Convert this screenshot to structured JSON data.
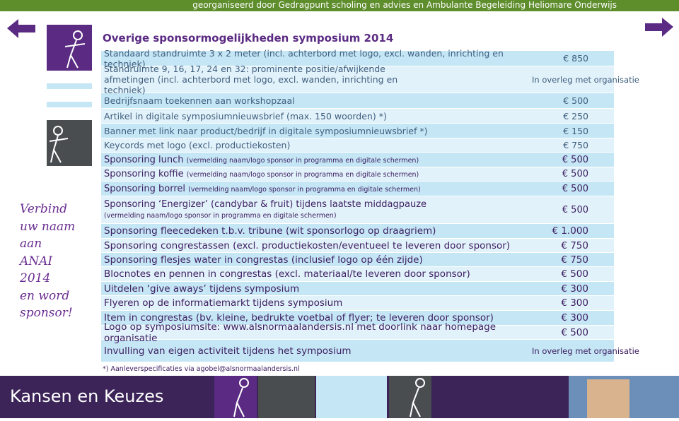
{
  "header": {
    "text": "georganiseerd door Gedragpunt scholing en advies en Ambulante Begeleiding Heliomare Onderwijs"
  },
  "title": "Overige sponsormogelijkheden symposium 2014",
  "slogan": [
    "Verbind",
    "uw naam",
    "aan",
    "ANAI",
    "2014",
    "en word",
    "sponsor!"
  ],
  "currency": "€",
  "table": {
    "rows": [
      {
        "text": "Standaard standruimte 3 x 2 meter (incl. achterbord met logo, excl. wanden, inrichting en techniek)",
        "price": "850"
      },
      {
        "text": "Standruimte 9, 16, 17, 24 en 32: prominente positie/afwijkende afmetingen (incl. achterbord met logo, excl. wanden, inrichting en techniek)",
        "price": "In overleg met organisatie"
      },
      {
        "text": "Bedrijfsnaam toekennen aan workshopzaal",
        "price": "500"
      },
      {
        "text": "Artikel in digitale symposiumnieuwsbrief (max. 150 woorden) *)",
        "price": "250"
      },
      {
        "text": "Banner met link naar product/bedrijf in digitale symposiumnieuwsbrief *)",
        "price": "150"
      },
      {
        "text": "Keycords met logo (excl. productiekosten)",
        "price": "750"
      },
      {
        "text": "Sponsoring lunch",
        "detail": "(vermelding naam/logo sponsor in programma en digitale schermen)",
        "price": "500"
      },
      {
        "text": "Sponsoring koffie",
        "detail": "(vermelding naam/logo sponsor in programma en digitale schermen)",
        "price": "500"
      },
      {
        "text": "Sponsoring borrel",
        "detail": "(vermelding naam/logo sponsor in programma en digitale schermen)",
        "price": "500"
      },
      {
        "text": "Sponsoring ‘Energizer’ (candybar & fruit) tijdens laatste middagpauze",
        "detail": "(vermelding naam/logo sponsor in programma en digitale schermen)",
        "price": "500"
      },
      {
        "text": "Sponsoring fleecedeken t.b.v. tribune (wit sponsorlogo op draagriem)",
        "price": "1.000"
      },
      {
        "text": "Sponsoring congrestassen (excl. productiekosten/eventueel te leveren door sponsor)",
        "price": "750"
      },
      {
        "text": "Sponsoring flesjes water in congrestas (inclusief logo op één zijde)",
        "price": "750"
      },
      {
        "text": "Blocnotes en pennen in congrestas (excl. materiaal/te leveren door sponsor)",
        "price": "500"
      },
      {
        "text": "Uitdelen ‘give aways’ tijdens symposium",
        "price": "300"
      },
      {
        "text": "Flyeren op de informatiemarkt tijdens symposium",
        "price": "300"
      },
      {
        "text": "Item in congrestas (bv. kleine, bedrukte voetbal of flyer; te leveren door sponsor)",
        "price": "300"
      },
      {
        "text": "Logo op symposiumsite: www.alsnormaalandersis.nl met doorlink naar homepage organisatie",
        "price": "500"
      },
      {
        "text": "Invulling van eigen activiteit tijdens het symposium",
        "price": "In overleg met organisatie"
      }
    ]
  },
  "footnote": "*) Aanleverspecificaties via agobel@alsnormaalandersis.nl",
  "footer": {
    "brand": "Kansen en Keuzes"
  }
}
